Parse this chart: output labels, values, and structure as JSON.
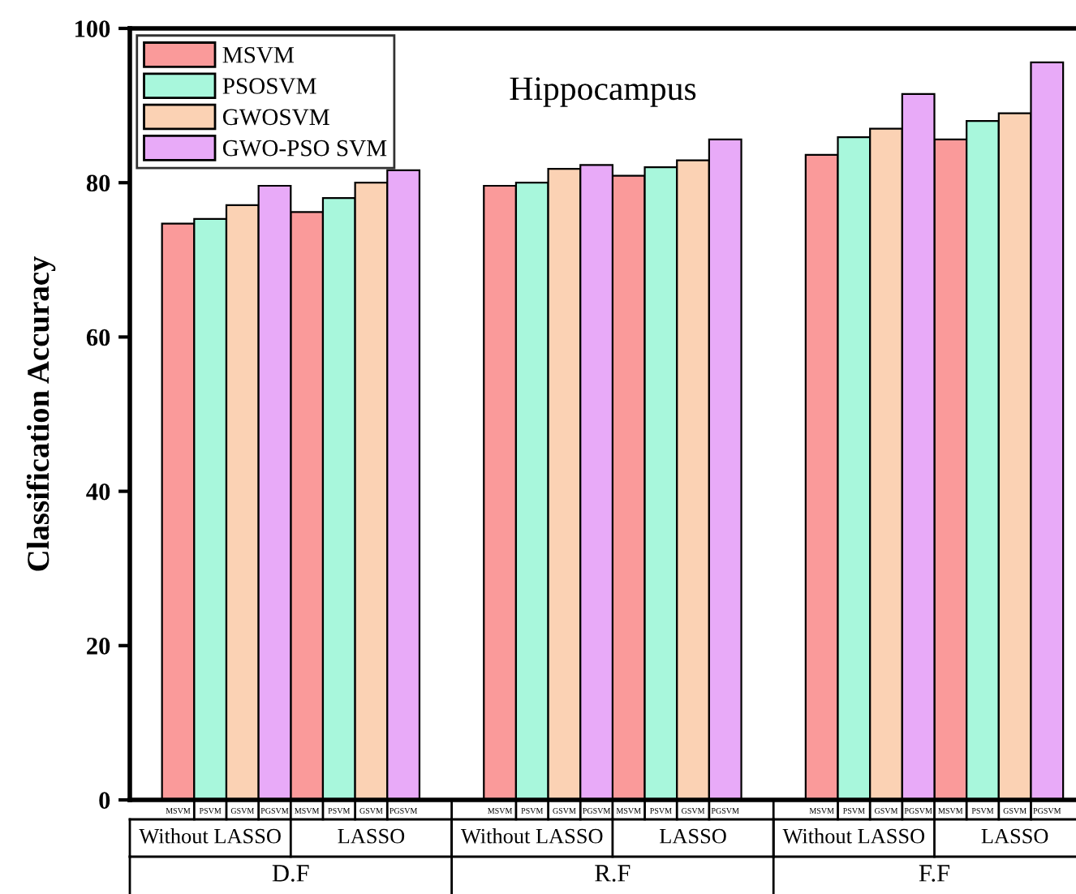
{
  "chart_data": {
    "type": "bar",
    "title": "Hippocampus",
    "ylabel": "Classification Accuracy",
    "categories": [
      "MSVM",
      "PSVM",
      "GSVM",
      "PGSVM",
      "MSVM",
      "PSVM",
      "GSVM",
      "PGSVM",
      null,
      null,
      "MSVM",
      "PSVM",
      "GSVM",
      "PGSVM",
      "MSVM",
      "PSVM",
      "GSVM",
      "PGSVM",
      null,
      null,
      "MSVM",
      "PSVM",
      "GSVM",
      "PGSVM",
      "MSVM",
      "PSVM",
      "GSVM",
      "PGSVM"
    ],
    "series": [
      {
        "name": "MSVM",
        "color": "#fa9a9a",
        "values": [
          74.7,
          null,
          null,
          null,
          76.2,
          null,
          null,
          null,
          null,
          null,
          79.6,
          null,
          null,
          null,
          80.9,
          null,
          null,
          null,
          null,
          null,
          83.6,
          null,
          null,
          null,
          85.6,
          null,
          null,
          null
        ]
      },
      {
        "name": "PSOSVM",
        "color": "#a8f7dc",
        "values": [
          null,
          75.3,
          null,
          null,
          null,
          78.0,
          null,
          null,
          null,
          null,
          null,
          80.0,
          null,
          null,
          null,
          82.0,
          null,
          null,
          null,
          null,
          null,
          85.9,
          null,
          null,
          null,
          88.0,
          null,
          null
        ]
      },
      {
        "name": "GWOSVM",
        "color": "#fbd2b4",
        "values": [
          null,
          null,
          77.1,
          null,
          null,
          null,
          80.0,
          null,
          null,
          null,
          null,
          null,
          81.8,
          null,
          null,
          null,
          82.9,
          null,
          null,
          null,
          null,
          null,
          87.0,
          null,
          null,
          null,
          89.0,
          null
        ]
      },
      {
        "name": "GWO-PSO SVM",
        "color": "#e8aaf8",
        "values": [
          null,
          null,
          null,
          79.6,
          null,
          null,
          null,
          81.6,
          null,
          null,
          null,
          null,
          null,
          82.3,
          null,
          null,
          null,
          85.6,
          null,
          null,
          null,
          null,
          null,
          91.5,
          null,
          null,
          null,
          95.6
        ]
      }
    ],
    "annotations": [
      "Without LASSO",
      "LASSO",
      "Without LASSO",
      "LASSO",
      "Without LASSO",
      "LASSO",
      "D.F",
      "R.F",
      "F.F"
    ],
    "ylim": [
      0,
      100
    ],
    "yticks": [
      0,
      20,
      40,
      60,
      80,
      100
    ],
    "grid": false,
    "legend": "top left"
  }
}
